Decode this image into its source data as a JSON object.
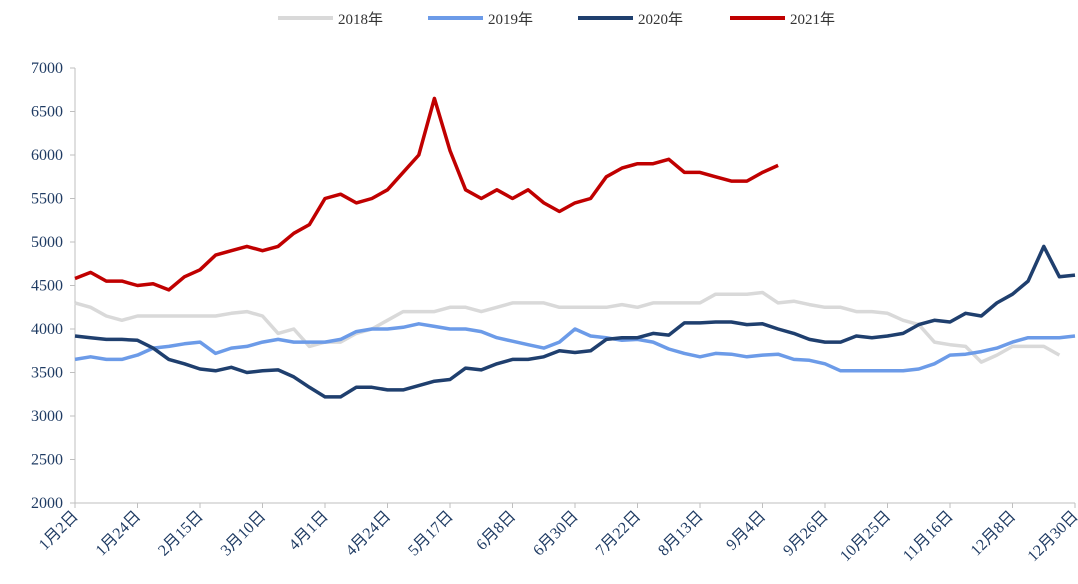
{
  "chart_data": {
    "type": "line",
    "categories": [
      "1月2日",
      null,
      null,
      null,
      "1月24日",
      null,
      null,
      null,
      "2月15日",
      null,
      null,
      null,
      "3月10日",
      null,
      null,
      null,
      "4月1日",
      null,
      null,
      null,
      "4月24日",
      null,
      null,
      null,
      "5月17日",
      null,
      null,
      null,
      "6月8日",
      null,
      null,
      null,
      "6月30日",
      null,
      null,
      null,
      "7月22日",
      null,
      null,
      null,
      "8月13日",
      null,
      null,
      null,
      "9月4日",
      null,
      null,
      null,
      "9月26日",
      null,
      null,
      null,
      "10月25日",
      null,
      null,
      null,
      "11月16日",
      null,
      null,
      null,
      "12月8日",
      null,
      null,
      null,
      "12月30日"
    ],
    "series": [
      {
        "name": "2018年",
        "color": "#d9d9d9",
        "values": [
          4300,
          4250,
          4150,
          4100,
          4150,
          4150,
          4150,
          4150,
          4150,
          4150,
          4180,
          4200,
          4150,
          3950,
          4000,
          3800,
          3850,
          3850,
          3950,
          4000,
          4100,
          4200,
          4200,
          4200,
          4250,
          4250,
          4200,
          4250,
          4300,
          4300,
          4300,
          4250,
          4250,
          4250,
          4250,
          4280,
          4250,
          4300,
          4300,
          4300,
          4300,
          4400,
          4400,
          4400,
          4420,
          4300,
          4320,
          4280,
          4250,
          4250,
          4200,
          4200,
          4180,
          4100,
          4050,
          3850,
          3820,
          3800,
          3620,
          3700,
          3800,
          3800,
          3800,
          3700,
          null
        ]
      },
      {
        "name": "2019年",
        "color": "#6c9be8",
        "values": [
          3650,
          3680,
          3650,
          3650,
          3700,
          3780,
          3800,
          3830,
          3850,
          3720,
          3780,
          3800,
          3850,
          3880,
          3850,
          3850,
          3850,
          3880,
          3970,
          4000,
          4000,
          4020,
          4060,
          4030,
          4000,
          4000,
          3970,
          3900,
          3860,
          3820,
          3780,
          3850,
          4000,
          3920,
          3900,
          3870,
          3880,
          3850,
          3770,
          3720,
          3680,
          3720,
          3710,
          3680,
          3700,
          3710,
          3650,
          3640,
          3600,
          3520,
          3520,
          3520,
          3520,
          3520,
          3540,
          3600,
          3700,
          3710,
          3740,
          3780,
          3850,
          3900,
          3900,
          3900,
          3920
        ]
      },
      {
        "name": "2020年",
        "color": "#1f3f6e",
        "values": [
          3920,
          3900,
          3880,
          3880,
          3870,
          3780,
          3650,
          3600,
          3540,
          3520,
          3560,
          3500,
          3520,
          3530,
          3450,
          3330,
          3220,
          3220,
          3330,
          3330,
          3300,
          3300,
          3350,
          3400,
          3420,
          3550,
          3530,
          3600,
          3650,
          3650,
          3680,
          3750,
          3730,
          3750,
          3880,
          3900,
          3900,
          3950,
          3930,
          4070,
          4070,
          4080,
          4080,
          4050,
          4060,
          4000,
          3950,
          3880,
          3850,
          3850,
          3920,
          3900,
          3920,
          3950,
          4050,
          4100,
          4080,
          4180,
          4150,
          4300,
          4400,
          4550,
          4950,
          4600,
          4620
        ]
      },
      {
        "name": "2021年",
        "color": "#c00000",
        "values": [
          4580,
          4650,
          4550,
          4550,
          4500,
          4520,
          4450,
          4600,
          4680,
          4850,
          4900,
          4950,
          4900,
          4950,
          5100,
          5200,
          5500,
          5550,
          5450,
          5500,
          5600,
          5800,
          6000,
          6650,
          6050,
          5600,
          5500,
          5600,
          5500,
          5600,
          5450,
          5350,
          5450,
          5500,
          5750,
          5850,
          5900,
          5900,
          5950,
          5800,
          5800,
          5750,
          5700,
          5700,
          5800,
          5880,
          null,
          null,
          null,
          null,
          null,
          null,
          null,
          null,
          null,
          null,
          null,
          null,
          null,
          null,
          null,
          null,
          null,
          null,
          null
        ]
      }
    ],
    "ylim": [
      2000,
      7000
    ],
    "yticks": [
      2000,
      2500,
      3000,
      3500,
      4000,
      4500,
      5000,
      5500,
      6000,
      6500,
      7000
    ]
  }
}
